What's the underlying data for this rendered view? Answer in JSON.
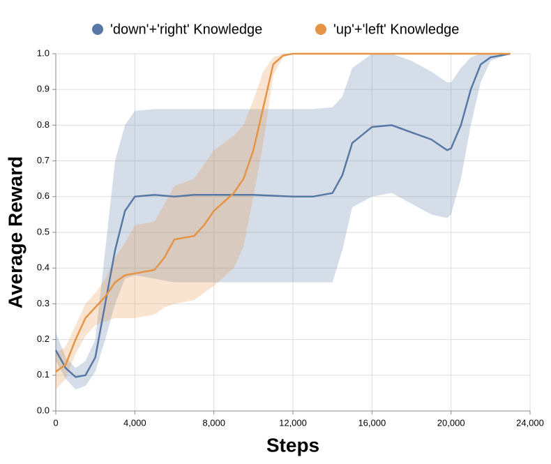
{
  "chart_data": {
    "type": "line",
    "xlabel": "Steps",
    "ylabel": "Average Reward",
    "xlim": [
      0,
      24000
    ],
    "xticks": [
      0,
      {
        "value": 4000,
        "label": "4,000"
      },
      {
        "value": 8000,
        "label": "8,000"
      },
      {
        "value": 12000,
        "label": "12,000"
      },
      {
        "value": 16000,
        "label": "16,000"
      },
      {
        "value": 20000,
        "label": "20,000"
      },
      {
        "value": 24000,
        "label": "24,000"
      }
    ],
    "ylim": [
      0,
      1
    ],
    "yticks": [
      {
        "value": 0,
        "label": "0.0"
      },
      0.1,
      0.2,
      0.3,
      0.4,
      0.5,
      0.6,
      0.7,
      0.8,
      0.9,
      {
        "value": 1,
        "label": "1.0"
      }
    ],
    "grid": true,
    "legend": "top",
    "series": [
      {
        "name": "'down'+'right' Knowledge",
        "color": "#5778a4",
        "x": [
          0,
          500,
          1000,
          1500,
          2000,
          2500,
          3000,
          3500,
          4000,
          5000,
          6000,
          7000,
          8000,
          10000,
          12000,
          13000,
          14000,
          14500,
          15000,
          16000,
          17000,
          18000,
          19000,
          19800,
          20000,
          20500,
          21000,
          21500,
          22000,
          23000
        ],
        "values": [
          0.17,
          0.12,
          0.095,
          0.1,
          0.15,
          0.3,
          0.45,
          0.56,
          0.6,
          0.605,
          0.6,
          0.605,
          0.605,
          0.605,
          0.6,
          0.6,
          0.61,
          0.66,
          0.75,
          0.795,
          0.8,
          0.78,
          0.76,
          0.73,
          0.735,
          0.8,
          0.9,
          0.97,
          0.99,
          1.0
        ],
        "lower": [
          0.14,
          0.09,
          0.06,
          0.07,
          0.11,
          0.2,
          0.3,
          0.37,
          0.38,
          0.37,
          0.36,
          0.36,
          0.36,
          0.36,
          0.36,
          0.36,
          0.36,
          0.45,
          0.57,
          0.6,
          0.61,
          0.58,
          0.55,
          0.54,
          0.55,
          0.65,
          0.8,
          0.92,
          0.98,
          1.0
        ],
        "upper": [
          0.22,
          0.15,
          0.12,
          0.14,
          0.2,
          0.45,
          0.7,
          0.8,
          0.84,
          0.845,
          0.845,
          0.845,
          0.845,
          0.845,
          0.845,
          0.845,
          0.85,
          0.88,
          0.96,
          1.0,
          1.0,
          0.98,
          0.95,
          0.92,
          0.92,
          0.96,
          0.99,
          1.0,
          1.0,
          1.0
        ]
      },
      {
        "name": "'up'+'left' Knowledge",
        "color": "#e49444",
        "x": [
          0,
          500,
          1000,
          1500,
          2000,
          2500,
          3000,
          3500,
          4000,
          5000,
          5500,
          6000,
          7000,
          7500,
          8000,
          9000,
          9500,
          10000,
          10500,
          11000,
          11500,
          12000,
          16000,
          20000,
          23000
        ],
        "values": [
          0.11,
          0.13,
          0.2,
          0.26,
          0.29,
          0.32,
          0.36,
          0.38,
          0.385,
          0.395,
          0.43,
          0.48,
          0.49,
          0.52,
          0.56,
          0.61,
          0.65,
          0.73,
          0.85,
          0.97,
          0.995,
          1.0,
          1.0,
          1.0,
          1.0
        ],
        "lower": [
          0.06,
          0.09,
          0.16,
          0.21,
          0.24,
          0.25,
          0.26,
          0.26,
          0.26,
          0.27,
          0.29,
          0.3,
          0.31,
          0.33,
          0.35,
          0.4,
          0.46,
          0.6,
          0.75,
          0.94,
          0.99,
          1.0,
          1.0,
          1.0,
          1.0
        ],
        "upper": [
          0.16,
          0.18,
          0.24,
          0.3,
          0.33,
          0.37,
          0.43,
          0.47,
          0.52,
          0.53,
          0.58,
          0.63,
          0.65,
          0.69,
          0.73,
          0.77,
          0.8,
          0.87,
          0.95,
          0.99,
          1.0,
          1.0,
          1.0,
          1.0,
          1.0
        ]
      }
    ]
  }
}
